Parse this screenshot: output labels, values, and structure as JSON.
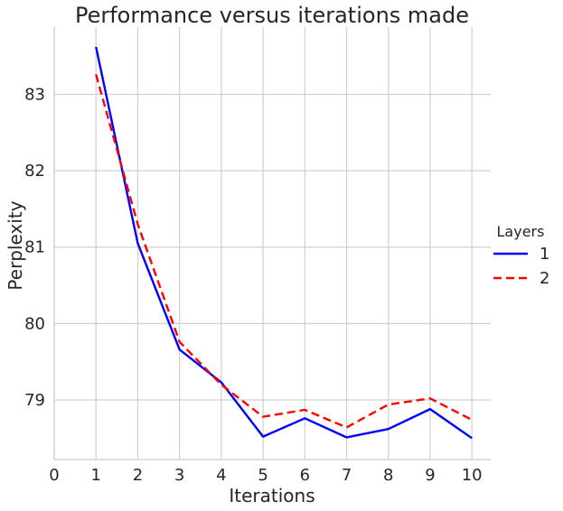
{
  "chart_data": {
    "type": "line",
    "title": "Performance versus iterations made",
    "xlabel": "Iterations",
    "ylabel": "Perplexity",
    "x": [
      1,
      2,
      3,
      4,
      5,
      6,
      7,
      8,
      9,
      10
    ],
    "xlim": [
      0,
      10.45
    ],
    "ylim": [
      78.22,
      83.88
    ],
    "xticks": [
      0,
      1,
      2,
      3,
      4,
      5,
      6,
      7,
      8,
      9,
      10
    ],
    "yticks": [
      79,
      80,
      81,
      82,
      83
    ],
    "grid": true,
    "legend": {
      "title": "Layers",
      "placement": "right"
    },
    "series": [
      {
        "name": "1",
        "color": "#0000ff",
        "dash": "solid",
        "values": [
          83.62,
          81.05,
          79.66,
          79.23,
          78.52,
          78.76,
          78.51,
          78.62,
          78.88,
          78.5
        ]
      },
      {
        "name": "2",
        "color": "#ff0000",
        "dash": "dashed",
        "values": [
          83.26,
          81.3,
          79.76,
          79.2,
          78.78,
          78.87,
          78.64,
          78.94,
          79.02,
          78.74
        ]
      }
    ]
  }
}
